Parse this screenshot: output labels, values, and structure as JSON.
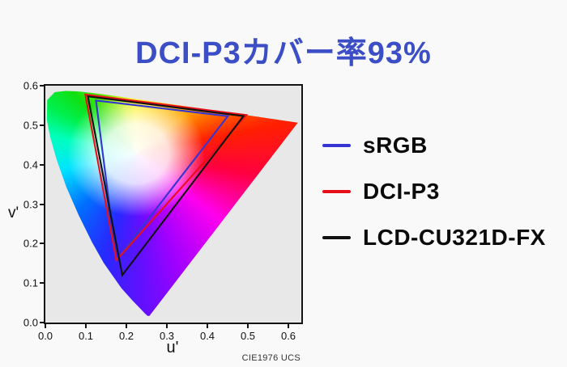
{
  "title": {
    "text": "DCI-P3カバー率93%",
    "color": "#3b4ec6"
  },
  "chart_data": {
    "type": "chromaticity-diagram",
    "title": "DCI-P3カバー率93%",
    "xlabel": "u'",
    "ylabel": "v'",
    "caption": "CIE1976 UCS",
    "xlim": [
      0,
      0.632
    ],
    "ylim": [
      0,
      0.6
    ],
    "x_ticks": [
      0.0,
      0.1,
      0.2,
      0.3,
      0.4,
      0.5,
      0.6
    ],
    "y_ticks": [
      0.0,
      0.1,
      0.2,
      0.3,
      0.4,
      0.5,
      0.6
    ],
    "grid": false,
    "legend_position": "right",
    "plot_background": "#e8e8e8",
    "spectral_locus_uv": [
      [
        0.2568,
        0.0166
      ],
      [
        0.2522,
        0.0169
      ],
      [
        0.2461,
        0.0226
      ],
      [
        0.2347,
        0.035
      ],
      [
        0.2161,
        0.0549
      ],
      [
        0.1877,
        0.0871
      ],
      [
        0.1441,
        0.151
      ],
      [
        0.1147,
        0.2044
      ],
      [
        0.0828,
        0.2708
      ],
      [
        0.0521,
        0.3427
      ],
      [
        0.0282,
        0.4117
      ],
      [
        0.0119,
        0.4698
      ],
      [
        0.0035,
        0.5131
      ],
      [
        0.0046,
        0.5639
      ],
      [
        0.0231,
        0.5836
      ],
      [
        0.05,
        0.5867
      ],
      [
        0.0792,
        0.5856
      ],
      [
        0.1127,
        0.5821
      ],
      [
        0.1531,
        0.5766
      ],
      [
        0.2026,
        0.5694
      ],
      [
        0.2623,
        0.5604
      ],
      [
        0.3315,
        0.5501
      ],
      [
        0.4035,
        0.5393
      ],
      [
        0.4691,
        0.5296
      ],
      [
        0.5203,
        0.5219
      ],
      [
        0.6234,
        0.5065
      ]
    ],
    "series": [
      {
        "name": "sRGB",
        "color": "#3535d2",
        "vertices_uv": [
          [
            0.4507,
            0.5229
          ],
          [
            0.125,
            0.5625
          ],
          [
            0.1754,
            0.1579
          ]
        ]
      },
      {
        "name": "DCI-P3",
        "color": "#e81018",
        "vertices_uv": [
          [
            0.4964,
            0.5256
          ],
          [
            0.0985,
            0.5777
          ],
          [
            0.1754,
            0.1579
          ]
        ]
      },
      {
        "name": "LCD-CU321D-FX",
        "color": "#111111",
        "vertices_uv": [
          [
            0.489,
            0.523
          ],
          [
            0.105,
            0.573
          ],
          [
            0.19,
            0.12
          ]
        ]
      }
    ]
  }
}
